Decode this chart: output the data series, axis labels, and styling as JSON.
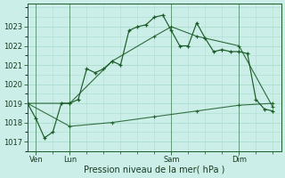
{
  "xlabel": "Pression niveau de la mer( hPa )",
  "ylim": [
    1016.5,
    1024.2
  ],
  "xlim": [
    0,
    30
  ],
  "background_color": "#cceee8",
  "grid_color": "#aaddcc",
  "line_color": "#1a5c28",
  "day_labels": [
    "Ven",
    "Lun",
    "Sam",
    "Dim"
  ],
  "day_positions": [
    1,
    5,
    17,
    25
  ],
  "yticks": [
    1017,
    1018,
    1019,
    1020,
    1021,
    1022,
    1023
  ],
  "series_main": {
    "x": [
      0,
      1,
      2,
      3,
      4,
      5,
      6,
      7,
      8,
      9,
      10,
      11,
      12,
      13,
      14,
      15,
      16,
      17,
      18,
      19,
      20,
      21,
      22,
      23,
      24,
      25,
      26,
      27,
      28,
      29
    ],
    "y": [
      1019.0,
      1018.2,
      1017.2,
      1017.5,
      1019.0,
      1019.0,
      1019.2,
      1020.8,
      1020.6,
      1020.8,
      1021.2,
      1021.0,
      1022.8,
      1023.0,
      1023.1,
      1023.5,
      1023.6,
      1022.8,
      1022.0,
      1022.0,
      1023.2,
      1022.4,
      1021.7,
      1021.8,
      1021.7,
      1021.7,
      1021.6,
      1019.2,
      1018.7,
      1018.6
    ]
  },
  "series_med": {
    "x": [
      0,
      5,
      10,
      15,
      17,
      20,
      25,
      29
    ],
    "y": [
      1019.0,
      1019.0,
      1021.2,
      1022.5,
      1023.0,
      1022.5,
      1022.0,
      1018.8
    ]
  },
  "series_low": {
    "x": [
      0,
      5,
      10,
      15,
      20,
      25,
      29
    ],
    "y": [
      1019.0,
      1017.8,
      1018.0,
      1018.3,
      1018.6,
      1018.9,
      1019.0
    ]
  }
}
